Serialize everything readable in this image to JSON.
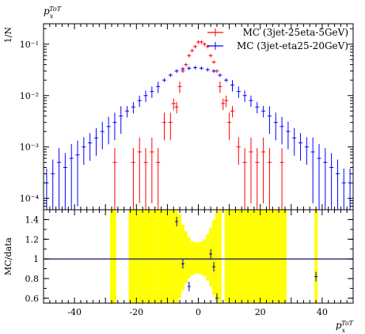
{
  "title": "p_x^TOT",
  "title_main": "p",
  "title_sub": "x",
  "title_sup": "ToT",
  "chart_data": [
    {
      "type": "scatter",
      "panel": "main",
      "ylabel": "1/N",
      "log_y": true,
      "ylim": [
        6e-05,
        0.25
      ],
      "xlim": [
        -50,
        50
      ],
      "y_ticks": [
        "10⁻⁴",
        "10⁻³",
        "10⁻²",
        "10⁻¹"
      ],
      "legend_placement": "top-right",
      "series": [
        {
          "name": "MC (3jet-25eta-5GeV)",
          "color": "#ff0000",
          "x": [
            -27,
            -21,
            -19,
            -17,
            -15,
            -13,
            -11,
            -9,
            -8,
            -7,
            -6,
            -5,
            -4,
            -3,
            -2,
            -1,
            0,
            1,
            2,
            3,
            4,
            5,
            6,
            7,
            8,
            9,
            10,
            11,
            13,
            15,
            17,
            19,
            21,
            23,
            27
          ],
          "y": [
            0.0005,
            0.0005,
            0.0008,
            0.0005,
            0.0008,
            0.0005,
            0.003,
            0.003,
            0.007,
            0.006,
            0.015,
            0.03,
            0.04,
            0.06,
            0.075,
            0.09,
            0.11,
            0.11,
            0.1,
            0.09,
            0.06,
            0.045,
            0.03,
            0.015,
            0.007,
            0.008,
            0.003,
            0.005,
            0.001,
            0.0005,
            0.0008,
            0.0005,
            0.0008,
            0.0005,
            0.0005
          ]
        },
        {
          "name": "MC (3jet-eta25-20GeV)",
          "color": "#0000ff",
          "x": [
            -49,
            -47,
            -45,
            -43,
            -41,
            -39,
            -37,
            -35,
            -33,
            -31,
            -29,
            -27,
            -25,
            -23,
            -21,
            -19,
            -17,
            -15,
            -13,
            -11,
            -9,
            -7,
            -5,
            -3,
            -1,
            1,
            3,
            5,
            7,
            9,
            11,
            13,
            15,
            17,
            19,
            21,
            23,
            25,
            27,
            29,
            31,
            33,
            35,
            37,
            39,
            41,
            43,
            45,
            47,
            49
          ],
          "y": [
            0.0002,
            0.0003,
            0.0005,
            0.0004,
            0.0006,
            0.0007,
            0.001,
            0.0012,
            0.0015,
            0.002,
            0.0025,
            0.003,
            0.004,
            0.005,
            0.006,
            0.008,
            0.01,
            0.012,
            0.015,
            0.02,
            0.025,
            0.03,
            0.033,
            0.034,
            0.035,
            0.034,
            0.032,
            0.03,
            0.025,
            0.02,
            0.016,
            0.012,
            0.01,
            0.008,
            0.006,
            0.005,
            0.004,
            0.003,
            0.0025,
            0.002,
            0.0015,
            0.0012,
            0.001,
            0.0008,
            0.0006,
            0.0005,
            0.0004,
            0.0003,
            0.0002,
            0.0002
          ]
        }
      ]
    },
    {
      "type": "scatter",
      "panel": "ratio",
      "xlabel": "p_x^TOT",
      "ylabel": "MC/data",
      "ylim": [
        0.55,
        1.5
      ],
      "xlim": [
        -50,
        50
      ],
      "x_ticks": [
        -40,
        -20,
        0,
        20,
        40
      ],
      "y_ticks": [
        0.6,
        0.8,
        1,
        1.2,
        1.4
      ],
      "reference_line": 1,
      "band_color": "#ffff00",
      "band_upper": [
        [
          -28,
          1.5
        ],
        [
          -27,
          1.5
        ],
        [
          -22,
          1.5
        ],
        [
          -21,
          1.5
        ],
        [
          -20,
          1.5
        ],
        [
          -19,
          1.5
        ],
        [
          -18,
          1.5
        ],
        [
          -17,
          1.5
        ],
        [
          -16,
          1.5
        ],
        [
          -15,
          1.5
        ],
        [
          -14,
          1.5
        ],
        [
          -13,
          1.5
        ],
        [
          -12,
          1.5
        ],
        [
          -11,
          1.5
        ],
        [
          -10,
          1.5
        ],
        [
          -9,
          1.5
        ],
        [
          -8,
          1.5
        ],
        [
          -7,
          1.5
        ],
        [
          -6,
          1.45
        ],
        [
          -5,
          1.35
        ],
        [
          -4,
          1.28
        ],
        [
          -3,
          1.22
        ],
        [
          -2,
          1.18
        ],
        [
          -1,
          1.17
        ],
        [
          0,
          1.17
        ],
        [
          1,
          1.18
        ],
        [
          2,
          1.2
        ],
        [
          3,
          1.25
        ],
        [
          4,
          1.32
        ],
        [
          5,
          1.4
        ],
        [
          6,
          1.48
        ],
        [
          7,
          1.5
        ],
        [
          9,
          1.5
        ],
        [
          10,
          1.5
        ],
        [
          11,
          1.5
        ],
        [
          12,
          1.5
        ],
        [
          13,
          1.5
        ],
        [
          14,
          1.5
        ],
        [
          15,
          1.5
        ],
        [
          16,
          1.5
        ],
        [
          17,
          1.5
        ],
        [
          18,
          1.5
        ],
        [
          19,
          1.5
        ],
        [
          20,
          1.5
        ],
        [
          21,
          1.5
        ],
        [
          22,
          1.5
        ],
        [
          23,
          1.5
        ],
        [
          24,
          1.5
        ],
        [
          25,
          1.5
        ],
        [
          26,
          1.5
        ],
        [
          27,
          1.5
        ],
        [
          28,
          1.5
        ],
        [
          38,
          1.5
        ]
      ],
      "band_lower": [
        [
          -28,
          0.55
        ],
        [
          -27,
          0.55
        ],
        [
          -22,
          0.55
        ],
        [
          -21,
          0.55
        ],
        [
          -20,
          0.55
        ],
        [
          -19,
          0.55
        ],
        [
          -18,
          0.55
        ],
        [
          -17,
          0.55
        ],
        [
          -16,
          0.55
        ],
        [
          -15,
          0.55
        ],
        [
          -14,
          0.55
        ],
        [
          -13,
          0.55
        ],
        [
          -12,
          0.55
        ],
        [
          -11,
          0.55
        ],
        [
          -10,
          0.55
        ],
        [
          -9,
          0.55
        ],
        [
          -8,
          0.55
        ],
        [
          -7,
          0.55
        ],
        [
          -6,
          0.6
        ],
        [
          -5,
          0.68
        ],
        [
          -4,
          0.75
        ],
        [
          -3,
          0.8
        ],
        [
          -2,
          0.83
        ],
        [
          -1,
          0.85
        ],
        [
          0,
          0.85
        ],
        [
          1,
          0.84
        ],
        [
          2,
          0.82
        ],
        [
          3,
          0.78
        ],
        [
          4,
          0.72
        ],
        [
          5,
          0.63
        ],
        [
          6,
          0.57
        ],
        [
          7,
          0.55
        ],
        [
          9,
          0.55
        ],
        [
          10,
          0.55
        ],
        [
          11,
          0.55
        ],
        [
          12,
          0.55
        ],
        [
          13,
          0.55
        ],
        [
          14,
          0.55
        ],
        [
          15,
          0.55
        ],
        [
          16,
          0.55
        ],
        [
          17,
          0.55
        ],
        [
          18,
          0.55
        ],
        [
          19,
          0.55
        ],
        [
          20,
          0.55
        ],
        [
          21,
          0.55
        ],
        [
          22,
          0.55
        ],
        [
          23,
          0.55
        ],
        [
          24,
          0.55
        ],
        [
          25,
          0.55
        ],
        [
          26,
          0.55
        ],
        [
          27,
          0.55
        ],
        [
          28,
          0.55
        ],
        [
          38,
          0.55
        ]
      ],
      "points_x": [
        -7,
        -5,
        -3,
        4,
        5,
        6,
        38
      ],
      "points_y": [
        1.38,
        0.95,
        0.72,
        1.05,
        0.92,
        0.6,
        0.82
      ]
    }
  ]
}
